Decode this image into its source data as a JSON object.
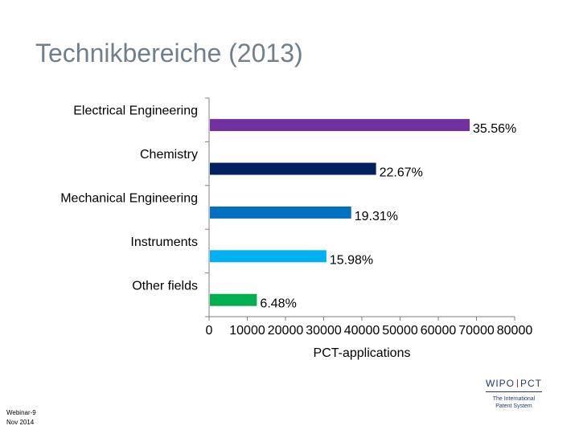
{
  "slide": {
    "title": "Technikbereiche (2013)",
    "footer_line1": "Webinar-9",
    "footer_line2": "Nov 2014"
  },
  "logo": {
    "left": "WIPO",
    "right": "PCT",
    "subtitle_line1": "The International",
    "subtitle_line2": "Patent System"
  },
  "chart_data": {
    "type": "bar",
    "orientation": "horizontal",
    "title": "",
    "xlabel": "PCT-applications",
    "ylabel": "",
    "xlim": [
      0,
      80000
    ],
    "xticks": [
      0,
      10000,
      20000,
      30000,
      40000,
      50000,
      60000,
      70000,
      80000
    ],
    "grid": false,
    "categories": [
      "Electrical Engineering",
      "Chemistry",
      "Mechanical Engineering",
      "Instruments",
      "Other fields"
    ],
    "values": [
      68000,
      43500,
      37000,
      30500,
      12300
    ],
    "data_labels": [
      "35.56%",
      "22.67%",
      "19.31%",
      "15.98%",
      "6.48%"
    ],
    "colors": [
      "#7030a0",
      "#002060",
      "#0070c0",
      "#00b0f0",
      "#00b050"
    ]
  }
}
